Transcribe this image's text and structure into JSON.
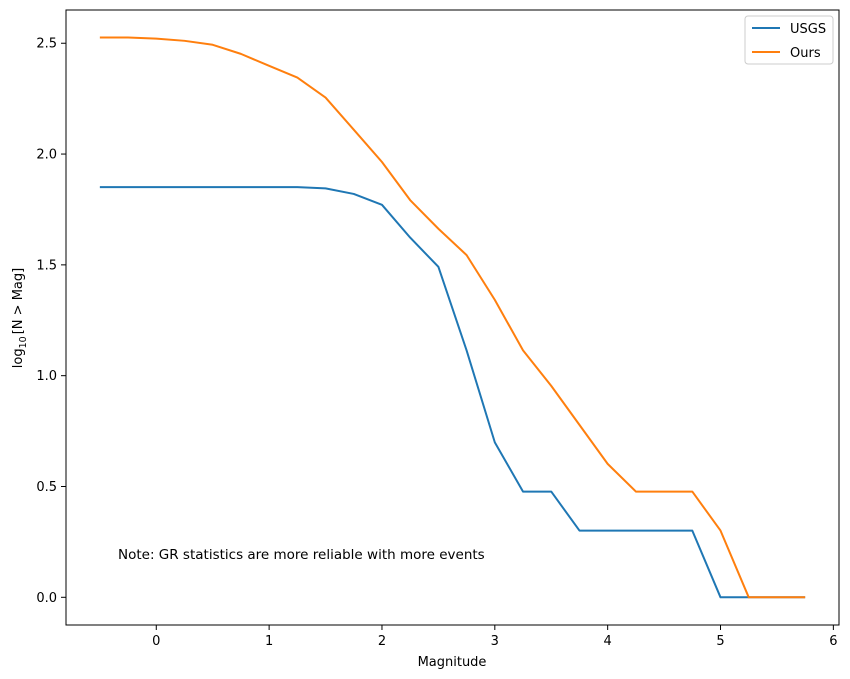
{
  "chart_data": {
    "type": "line",
    "title": "",
    "xlabel": "Magnitude",
    "ylabel_prefix": "log",
    "ylabel_sub": "10",
    "ylabel_rest": "[N > Mag]",
    "xlim": [
      -0.8,
      6.05
    ],
    "ylim": [
      -0.125,
      2.65
    ],
    "xticks": [
      0,
      1,
      2,
      3,
      4,
      5,
      6
    ],
    "xtick_labels": [
      "0",
      "1",
      "2",
      "3",
      "4",
      "5",
      "6"
    ],
    "yticks": [
      0.0,
      0.5,
      1.0,
      1.5,
      2.0,
      2.5
    ],
    "ytick_labels": [
      "0.0",
      "0.5",
      "1.0",
      "1.5",
      "2.0",
      "2.5"
    ],
    "legend_position": "top-right",
    "annotation": "Note: GR statistics are more reliable with more events",
    "series": [
      {
        "name": "USGS",
        "color": "#1f77b4",
        "x": [
          -0.5,
          -0.25,
          0,
          0.25,
          0.5,
          0.75,
          1.0,
          1.25,
          1.5,
          1.75,
          2.0,
          2.25,
          2.5,
          2.75,
          3.0,
          3.25,
          3.5,
          3.75,
          4.0,
          4.25,
          4.5,
          4.75,
          5.0,
          5.25,
          5.5,
          5.75
        ],
        "y": [
          1.851,
          1.851,
          1.851,
          1.851,
          1.851,
          1.851,
          1.851,
          1.851,
          1.845,
          1.82,
          1.771,
          1.623,
          1.491,
          1.114,
          0.699,
          0.477,
          0.477,
          0.301,
          0.301,
          0.301,
          0.301,
          0.301,
          0.0,
          0.0,
          0.0,
          0.0
        ]
      },
      {
        "name": "Ours",
        "color": "#ff7f0e",
        "x": [
          -0.5,
          -0.25,
          0,
          0.25,
          0.5,
          0.75,
          1.0,
          1.25,
          1.5,
          1.75,
          2.0,
          2.25,
          2.5,
          2.75,
          3.0,
          3.25,
          3.5,
          3.75,
          4.0,
          4.25,
          4.5,
          4.75,
          5.0,
          5.25,
          5.5,
          5.75
        ],
        "y": [
          2.526,
          2.526,
          2.521,
          2.511,
          2.493,
          2.452,
          2.398,
          2.345,
          2.255,
          2.11,
          1.964,
          1.792,
          1.663,
          1.544,
          1.342,
          1.114,
          0.954,
          0.778,
          0.602,
          0.477,
          0.477,
          0.477,
          0.301,
          0.0,
          0.0,
          0.0
        ]
      }
    ]
  }
}
